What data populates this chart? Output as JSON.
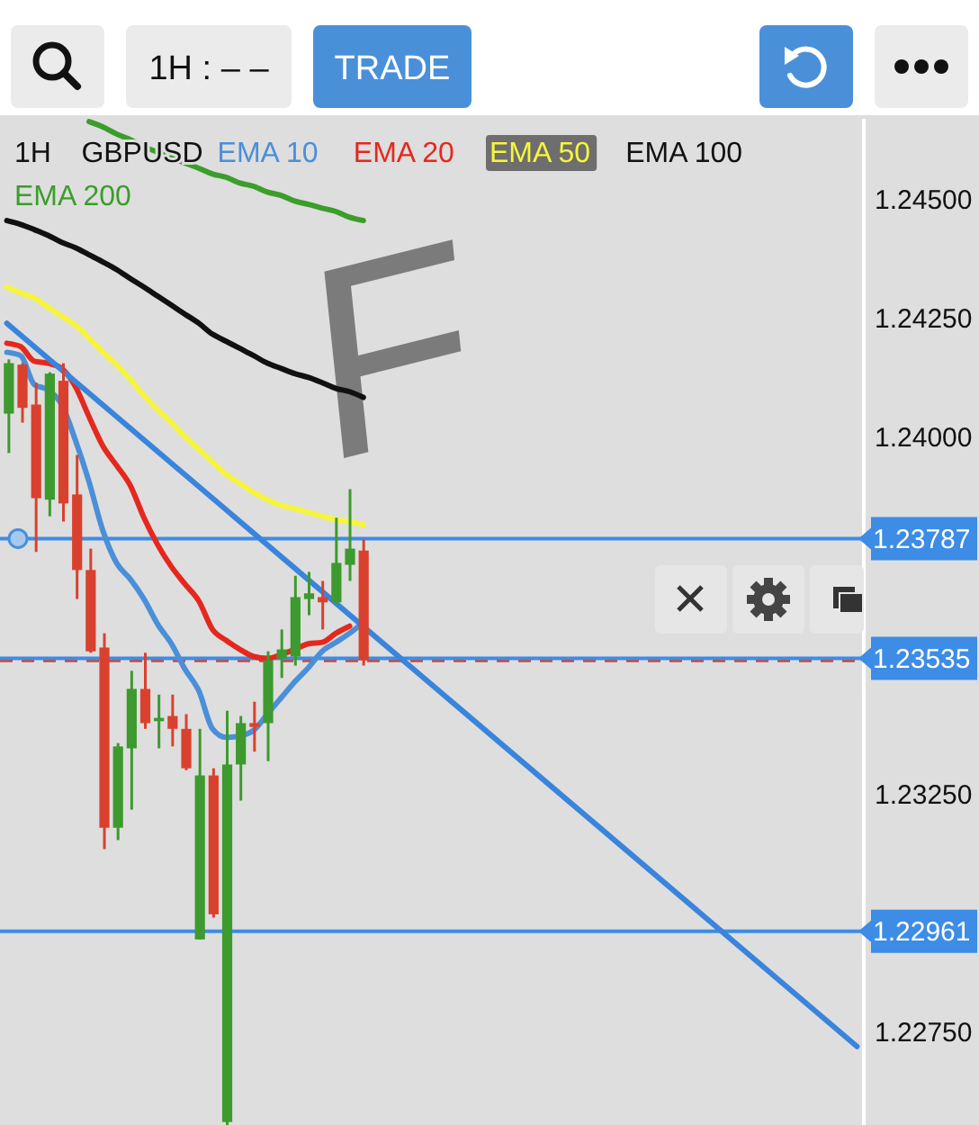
{
  "chart_data": {
    "type": "candlestick",
    "title": "GBPUSD",
    "subtitle": "1H",
    "categories": [
      null,
      null,
      null,
      null,
      null,
      null,
      null,
      null,
      null,
      null,
      null,
      null,
      null,
      null,
      null,
      null,
      null,
      null,
      null,
      null,
      null,
      null,
      null,
      null,
      null,
      null,
      null,
      null,
      null,
      null,
      null,
      null,
      null,
      null,
      null,
      null,
      null,
      null,
      null,
      null,
      null,
      null,
      null,
      null,
      null,
      null,
      null,
      null,
      null,
      null,
      null,
      null,
      null,
      null,
      null,
      null,
      null,
      null,
      null,
      null,
      null,
      null,
      null
    ],
    "ohlc": [
      [
        1.2405,
        1.24164,
        1.23967,
        1.24156
      ],
      [
        1.24153,
        1.24156,
        1.24031,
        1.24062
      ],
      [
        1.24069,
        1.24115,
        1.23759,
        1.23872
      ],
      [
        1.23869,
        1.24137,
        1.23834,
        1.24134
      ],
      [
        1.24119,
        1.24156,
        1.23823,
        1.23861
      ],
      [
        1.2388,
        1.23963,
        1.2366,
        1.23721
      ],
      [
        1.23721,
        1.23766,
        1.23547,
        1.2355
      ],
      [
        1.23558,
        1.23588,
        1.23134,
        1.23179
      ],
      [
        1.23179,
        1.23357,
        1.23153,
        1.2335
      ],
      [
        1.23346,
        1.23509,
        1.23217,
        1.23471
      ],
      [
        1.23471,
        1.23547,
        1.23387,
        1.23399
      ],
      [
        1.23403,
        1.23459,
        1.23346,
        1.2341
      ],
      [
        1.23414,
        1.23459,
        1.2335,
        1.23387
      ],
      [
        1.23387,
        1.23418,
        1.233,
        1.23304
      ],
      [
        1.22944,
        1.23387,
        1.22944,
        1.23289
      ],
      [
        1.23289,
        1.23304,
        1.2299,
        1.22997
      ],
      [
        1.2256,
        1.23425,
        1.2255,
        1.23312
      ],
      [
        1.23312,
        1.23414,
        1.23236,
        1.23399
      ],
      [
        1.23399,
        1.23444,
        1.23339,
        1.23391
      ],
      [
        1.23399,
        1.2355,
        1.23319,
        1.23531
      ],
      [
        1.23535,
        1.23596,
        1.23494,
        1.23554
      ],
      [
        1.23539,
        1.23709,
        1.2352,
        1.23664
      ],
      [
        1.2366,
        1.23717,
        1.23626,
        1.23672
      ],
      [
        1.23664,
        1.23698,
        1.23596,
        1.23653
      ],
      [
        1.23653,
        1.23831,
        1.2365,
        1.23736
      ],
      [
        1.23732,
        1.23891,
        1.23698,
        1.23766
      ],
      [
        1.23762,
        1.23785,
        1.2352,
        1.23531
      ],
      null,
      null,
      null,
      null,
      null,
      null,
      null,
      null,
      null,
      null,
      null,
      null,
      null,
      null,
      null,
      null,
      null,
      null,
      null,
      null,
      null,
      null,
      null,
      null,
      null,
      null,
      null,
      null,
      null,
      null,
      null,
      null,
      null,
      null,
      null,
      null
    ],
    "series": [
      {
        "name": "EMA 10",
        "type": "line",
        "color": "#4a8fd8",
        "values": [
          1.24179,
          1.24172,
          1.24111,
          1.241,
          1.24069,
          1.23994,
          1.23906,
          1.23804,
          1.23736,
          1.23702,
          1.2366,
          1.23607,
          1.23566,
          1.23512,
          1.23467,
          1.23387,
          1.23369,
          1.23372,
          1.23384,
          1.23418,
          1.23452,
          1.23486,
          1.23516,
          1.2355,
          1.23569,
          1.23588,
          1.23611,
          null,
          null,
          null,
          null,
          null,
          null,
          null,
          null,
          null,
          null,
          null,
          null,
          null,
          null,
          null,
          null,
          null,
          null,
          null,
          null,
          null,
          null,
          null,
          null,
          null,
          null,
          null,
          null,
          null,
          null,
          null,
          null,
          null,
          null,
          null,
          null
        ]
      },
      {
        "name": "EMA 20",
        "type": "line",
        "color": "#e5281e",
        "values": [
          1.24198,
          1.24191,
          1.2416,
          1.24156,
          1.24145,
          1.24107,
          1.24043,
          1.23982,
          1.23941,
          1.23899,
          1.23831,
          1.23774,
          1.23728,
          1.23691,
          1.23656,
          1.23596,
          1.23573,
          1.23554,
          1.23539,
          1.23535,
          1.23543,
          1.23554,
          1.23566,
          1.23569,
          1.23588,
          1.23603,
          null,
          null,
          null,
          null,
          null,
          null,
          null,
          null,
          null,
          null,
          null,
          null,
          null,
          null,
          null,
          null,
          null,
          null,
          null,
          null,
          null,
          null,
          null,
          null,
          null,
          null,
          null,
          null,
          null,
          null,
          null,
          null,
          null,
          null,
          null,
          null,
          null
        ]
      },
      {
        "name": "EMA 50",
        "type": "line",
        "color": "#f6f53e",
        "values": [
          1.24316,
          1.24304,
          1.24293,
          1.24274,
          1.24255,
          1.24236,
          1.24209,
          1.24179,
          1.24153,
          1.24122,
          1.24088,
          1.24058,
          1.24031,
          1.24001,
          1.23975,
          1.23948,
          1.23922,
          1.23903,
          1.23884,
          1.23869,
          1.23857,
          1.2385,
          1.23842,
          1.23834,
          1.23827,
          1.23823,
          1.23816,
          null,
          null,
          null,
          null,
          null,
          null,
          null,
          null,
          null,
          null,
          null,
          null,
          null,
          null,
          null,
          null,
          null,
          null,
          null,
          null,
          null,
          null,
          null,
          null,
          null,
          null,
          null,
          null,
          null,
          null,
          null,
          null,
          null,
          null,
          null,
          null
        ]
      },
      {
        "name": "EMA 100",
        "type": "line",
        "color": "#111111",
        "values": [
          1.24456,
          1.24448,
          1.24437,
          1.24425,
          1.2441,
          1.24399,
          1.24384,
          1.24369,
          1.24353,
          1.24334,
          1.24316,
          1.24297,
          1.24278,
          1.24259,
          1.2424,
          1.24217,
          1.24202,
          1.24187,
          1.24172,
          1.24156,
          1.24145,
          1.24134,
          1.24126,
          1.24115,
          1.24103,
          1.24096,
          1.24084,
          null,
          null,
          null,
          null,
          null,
          null,
          null,
          null,
          null,
          null,
          null,
          null,
          null,
          null,
          null,
          null,
          null,
          null,
          null,
          null,
          null,
          null,
          null,
          null,
          null,
          null,
          null,
          null,
          null,
          null,
          null,
          null,
          null,
          null,
          null,
          null
        ]
      },
      {
        "name": "EMA 200",
        "type": "line",
        "color": "#3b9e2b",
        "values": [
          null,
          null,
          null,
          null,
          null,
          null,
          1.24664,
          1.24653,
          1.24638,
          1.24626,
          1.24611,
          1.246,
          1.24588,
          1.24577,
          1.24566,
          1.24554,
          1.24547,
          1.24535,
          1.24528,
          1.24516,
          1.24509,
          1.24497,
          1.2449,
          1.24482,
          1.24475,
          1.24463,
          1.24456,
          null,
          null,
          null,
          null,
          null,
          null,
          null,
          null,
          null,
          null,
          null,
          null,
          null,
          null,
          null,
          null,
          null,
          null,
          null,
          null,
          null,
          null,
          null,
          null,
          null,
          null,
          null,
          null,
          null,
          null,
          null,
          null,
          null,
          null,
          null,
          null
        ]
      },
      {
        "type": "line",
        "color": "#3a84dc",
        "values": [
          1.2424,
          null,
          null,
          null,
          null,
          null,
          null,
          null,
          null,
          null,
          null,
          null,
          null,
          null,
          null,
          null,
          null,
          null,
          null,
          null,
          null,
          null,
          null,
          null,
          null,
          null,
          null,
          null,
          null,
          null,
          null,
          null,
          null,
          null,
          null,
          null,
          null,
          null,
          null,
          null,
          null,
          null,
          null,
          null,
          null,
          null,
          null,
          null,
          null,
          null,
          null,
          null,
          null,
          null,
          null,
          null,
          null,
          null,
          null,
          null,
          null,
          null,
          1.22719
        ]
      }
    ],
    "ylim": [
      1.2255,
      1.2467
    ],
    "yticks": [
      {
        "value": 1.2275,
        "label": "1.22750"
      },
      {
        "value": 1.2325,
        "label": "1.23250"
      },
      {
        "value": 1.24,
        "label": "1.24000"
      },
      {
        "value": 1.2425,
        "label": "1.24250"
      },
      {
        "value": 1.245,
        "label": "1.24500"
      }
    ],
    "tick_labels": "y",
    "legend": "top",
    "ref_lines": [
      {
        "axis": "y",
        "value": 1.23787,
        "label": "1.23787",
        "color": "#3d8ce6"
      },
      {
        "axis": "y",
        "value": 1.2353,
        "color": "#d9412e",
        "line_style": "dashed"
      },
      {
        "axis": "y",
        "value": 1.23535,
        "label": "1.23535",
        "color": "#3d8ce6"
      },
      {
        "axis": "y",
        "value": 1.22961,
        "label": "1.22961",
        "color": "#3d8ce6"
      }
    ],
    "annotations": [
      "1H : – –",
      "TRADE",
      "F"
    ]
  }
}
